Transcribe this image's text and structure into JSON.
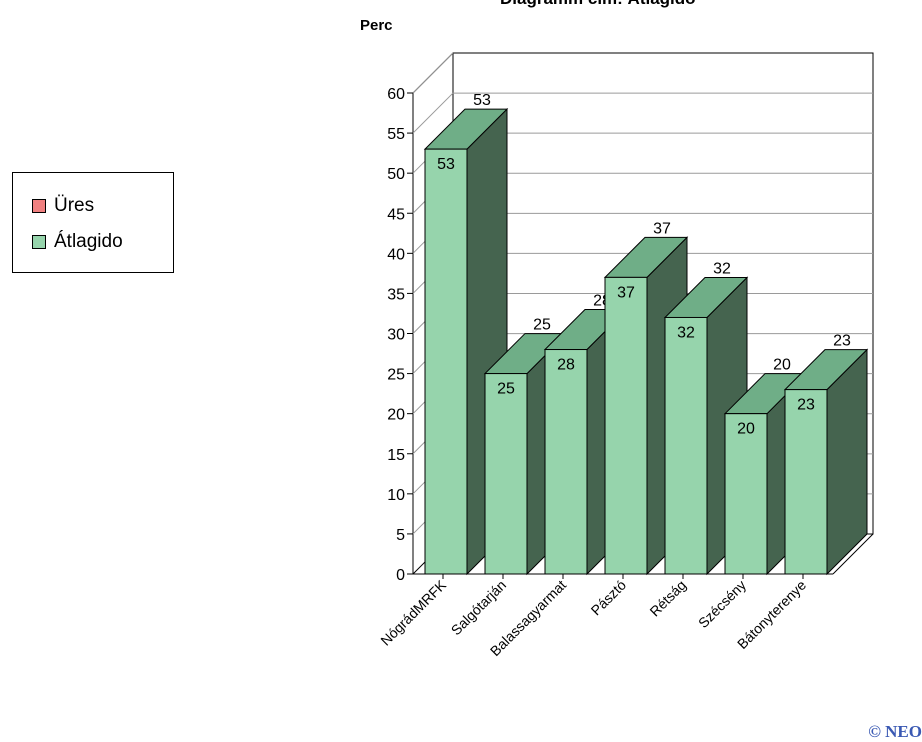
{
  "chart_data": {
    "type": "bar",
    "title": "Diagramm cím: Átlagidő",
    "ylabel": "Perc",
    "xlabel": "",
    "categories": [
      "NógrádMRFK",
      "Salgótarján",
      "Balassagyarmat",
      "Pásztó",
      "Rétság",
      "Szécsény",
      "Bátonyterenye"
    ],
    "series": [
      {
        "name": "Üres",
        "values": [
          0,
          0,
          0,
          0,
          0,
          0,
          0
        ]
      },
      {
        "name": "Átlagido",
        "values": [
          53,
          25,
          28,
          37,
          32,
          20,
          23
        ]
      }
    ],
    "ylim": [
      0,
      60
    ],
    "yticks": [
      0,
      5,
      10,
      15,
      20,
      25,
      30,
      35,
      40,
      45,
      50,
      55,
      60
    ],
    "grid": true,
    "legend_position": "left",
    "style": "3d-bar"
  },
  "legend": [
    {
      "label": "Üres",
      "color": "#f08080"
    },
    {
      "label": "Átlagido",
      "color": "#96d4ac"
    }
  ],
  "colors": {
    "bar_front": "#96d4ac",
    "bar_top": "#6fae87",
    "bar_side": "#45644f"
  },
  "copyright": "© NEO"
}
